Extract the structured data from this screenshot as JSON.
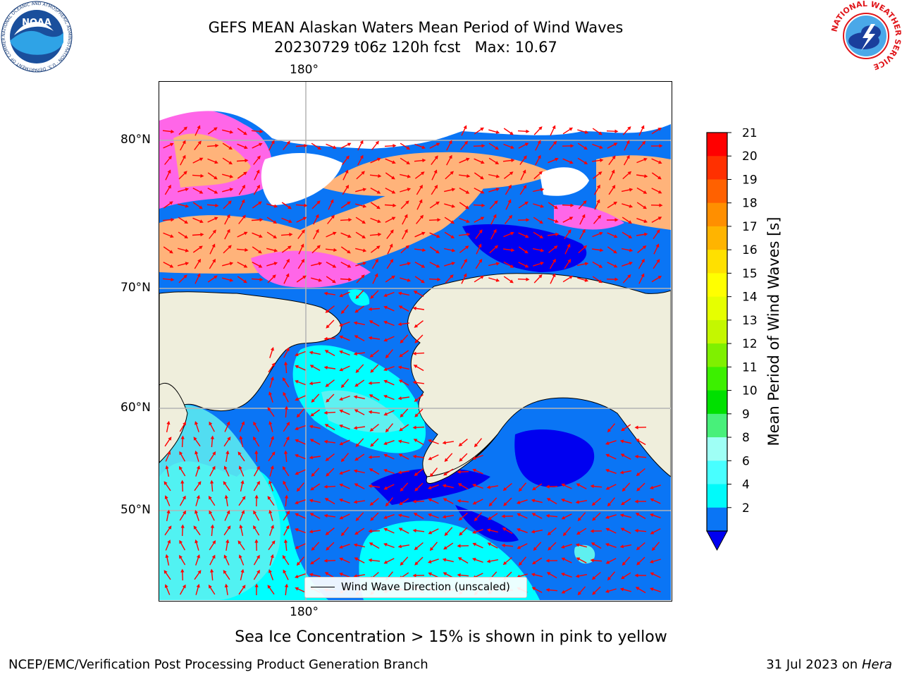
{
  "header": {
    "title_line1": "GEFS MEAN Alaskan Waters Mean Period of Wind Waves",
    "title_line2": "20230729 t06z 120h fcst   Max: 10.67"
  },
  "map": {
    "lon_label_top": "180°",
    "lon_label_bottom": "180°",
    "lat_labels": [
      "80°N",
      "70°N",
      "60°N",
      "50°N"
    ],
    "legend_label": "Wind Wave Direction (unscaled)",
    "colors": {
      "land": "#efeedc",
      "ocean_low": "#0a75f5",
      "ocean_very_low": "#0000f0",
      "ocean_mid": "#00ffff",
      "ocean_light": "#5ff0f0",
      "ice_pink": "#ff66e8",
      "ice_peach": "#ffb37a",
      "arrow": "#ff0000",
      "grid": "#b4b4b4"
    }
  },
  "colorbar": {
    "label": "Mean Period of Wind Waves [s]",
    "ticks": [
      "21",
      "20",
      "19",
      "18",
      "17",
      "16",
      "15",
      "14",
      "13",
      "12",
      "11",
      "10",
      "9",
      "8",
      "6",
      "4",
      "2"
    ],
    "segments": [
      {
        "level": "20-21",
        "color": "#ff0000"
      },
      {
        "level": "19-20",
        "color": "#ff3000"
      },
      {
        "level": "18-19",
        "color": "#ff6100"
      },
      {
        "level": "17-18",
        "color": "#ff8f00"
      },
      {
        "level": "16-17",
        "color": "#ffb400"
      },
      {
        "level": "15-16",
        "color": "#ffe000"
      },
      {
        "level": "14-15",
        "color": "#ffff00"
      },
      {
        "level": "13-14",
        "color": "#e6ff00"
      },
      {
        "level": "12-13",
        "color": "#c4f700"
      },
      {
        "level": "11-12",
        "color": "#7ff000"
      },
      {
        "level": "10-11",
        "color": "#3cf000"
      },
      {
        "level": "9-10",
        "color": "#00e000"
      },
      {
        "level": "8-9",
        "color": "#48f07a"
      },
      {
        "level": "6-8",
        "color": "#9ffff5"
      },
      {
        "level": "4-6",
        "color": "#48ffff"
      },
      {
        "level": "2-4",
        "color": "#00fafa"
      },
      {
        "level": "<2",
        "color": "#0a75f5"
      }
    ],
    "extend_color": "#0000f0"
  },
  "note": "Sea Ice Concentration > 15% is shown in pink to yellow",
  "footer": {
    "left": "NCEP/EMC/Verification Post Processing Product Generation Branch",
    "right_date": "31 Jul 2023 on",
    "right_host": "Hera"
  },
  "logos": {
    "noaa_text": "NOAA",
    "noaa_ring": "NATIONAL OCEANIC AND ATMOSPHERIC ADMINISTRATION · U.S. DEPARTMENT OF COMMERCE",
    "nws_ring": "NATIONAL WEATHER SERVICE"
  }
}
